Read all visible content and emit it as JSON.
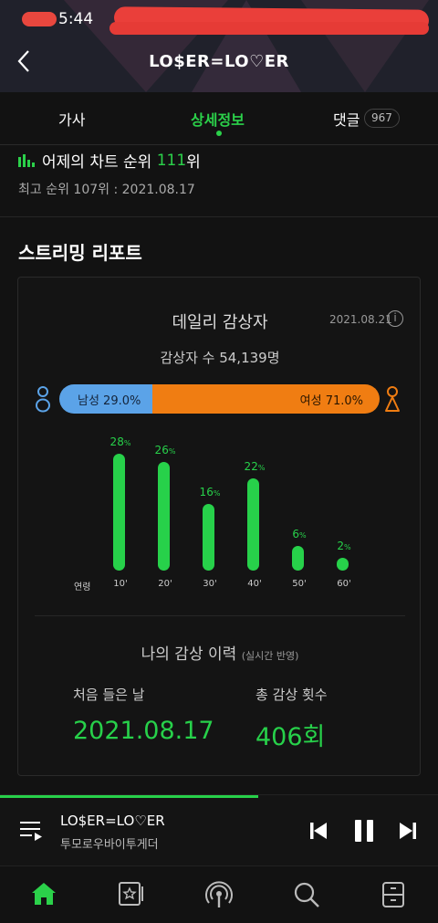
{
  "status_bar": {
    "time": "5:44"
  },
  "header": {
    "title": "LO$ER=LO♡ER"
  },
  "tabs": [
    {
      "label": "가사"
    },
    {
      "label": "상세정보"
    },
    {
      "label": "댓글",
      "count": "967"
    }
  ],
  "chart_rank": {
    "prefix": "어제의 차트 순위 ",
    "rank": "111",
    "suffix": "위",
    "best": "최고 순위 107위 : 2021.08.17"
  },
  "streaming_report": {
    "title": "스트리밍 리포트",
    "daily": {
      "title": "데일리 감상자",
      "date": "2021.08.21",
      "listeners": "감상자 수 54,139명",
      "male_label": "남성 29.0%",
      "female_label": "여성 71.0%",
      "male_pct": 29.0,
      "female_pct": 71.0,
      "age_axis_label": "연령"
    },
    "history": {
      "title": "나의 감상 이력",
      "note": "(실시간 반영)",
      "first_listen_label": "처음 들은 날",
      "first_listen_value": "2021.08.17",
      "total_label": "총 감상 횟수",
      "total_value": "406회"
    }
  },
  "chart_data": {
    "type": "bar",
    "categories": [
      "10'",
      "20'",
      "30'",
      "40'",
      "50'",
      "60'"
    ],
    "values": [
      28,
      26,
      16,
      22,
      6,
      2
    ],
    "unit": "%",
    "xlabel": "연령",
    "ylabel": "",
    "color": "#27d14a"
  },
  "player": {
    "title": "LO$ER=LO♡ER",
    "artist": "투모로우바이투게더",
    "progress": 0.59
  },
  "bottom_nav": [
    {
      "icon": "home-icon"
    },
    {
      "icon": "music-library-icon"
    },
    {
      "icon": "podcast-icon"
    },
    {
      "icon": "search-icon"
    },
    {
      "icon": "storage-icon"
    }
  ],
  "colors": {
    "accent": "#2bd14a",
    "male": "#5ba3e8",
    "female": "#f07d12",
    "background": "#121212"
  }
}
